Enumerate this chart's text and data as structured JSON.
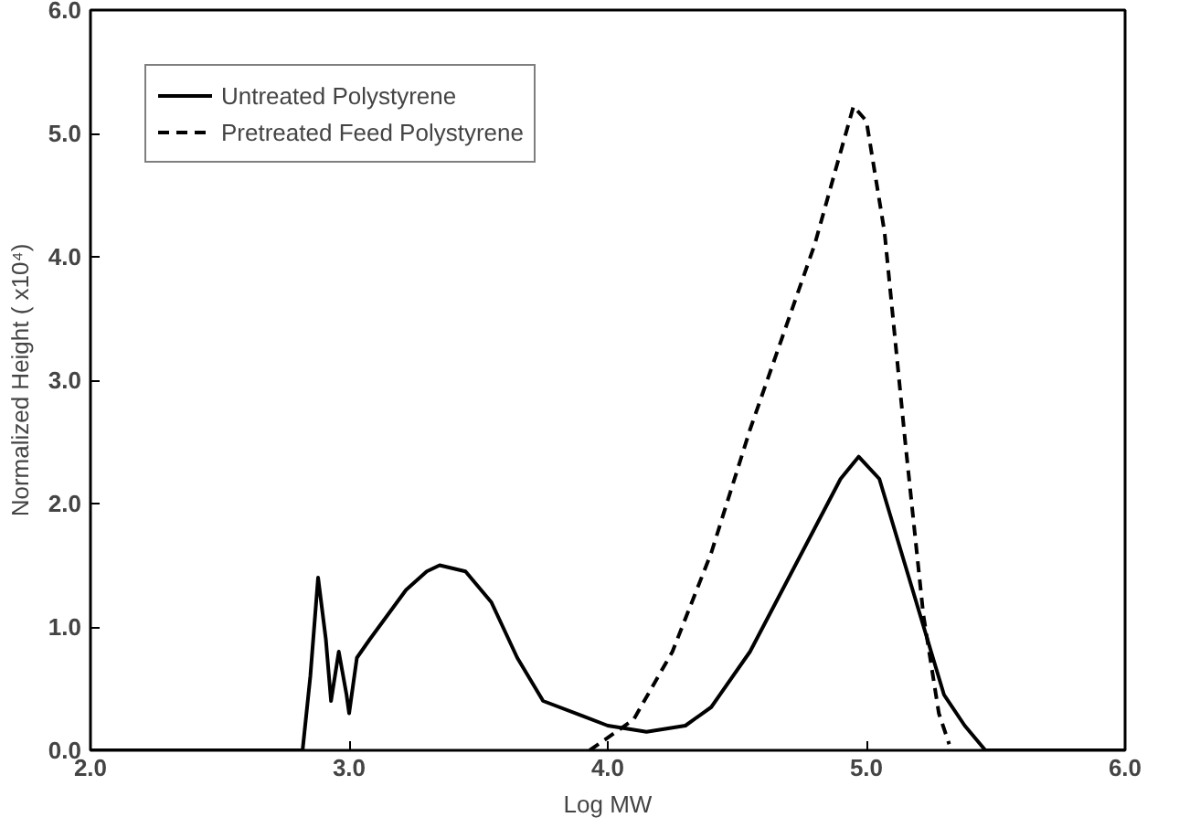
{
  "chart_data": {
    "type": "line",
    "xlabel": "Log MW",
    "ylabel": "Normalized Height ( x10⁴)",
    "xlim": [
      2,
      6
    ],
    "ylim": [
      0,
      6
    ],
    "xticks": [
      {
        "value": 2,
        "label": "2.0"
      },
      {
        "value": 3,
        "label": "3.0"
      },
      {
        "value": 4,
        "label": "4.0"
      },
      {
        "value": 5,
        "label": "5.0"
      },
      {
        "value": 6,
        "label": "6.0"
      }
    ],
    "yticks": [
      {
        "value": 0,
        "label": "0.0"
      },
      {
        "value": 1,
        "label": "1.0"
      },
      {
        "value": 2,
        "label": "2.0"
      },
      {
        "value": 3,
        "label": "3.0"
      },
      {
        "value": 4,
        "label": "4.0"
      },
      {
        "value": 5,
        "label": "5.0"
      },
      {
        "value": 6,
        "label": "6.0"
      }
    ],
    "legend": "top left",
    "grid": false,
    "series": [
      {
        "name": "Untreated Polystyrene",
        "color": "#000000",
        "line_style": "solid",
        "x": [
          2.0,
          2.82,
          2.85,
          2.88,
          2.91,
          2.93,
          2.96,
          2.99,
          3.0,
          3.03,
          3.08,
          3.15,
          3.22,
          3.3,
          3.35,
          3.45,
          3.55,
          3.65,
          3.75,
          3.9,
          4.0,
          4.15,
          4.3,
          4.4,
          4.55,
          4.7,
          4.8,
          4.9,
          4.97,
          5.05,
          5.15,
          5.25,
          5.3,
          5.38,
          5.46,
          6.0
        ],
        "values": [
          0,
          0,
          0.6,
          1.4,
          0.9,
          0.4,
          0.8,
          0.45,
          0.3,
          0.75,
          0.9,
          1.1,
          1.3,
          1.45,
          1.5,
          1.45,
          1.2,
          0.75,
          0.4,
          0.28,
          0.2,
          0.15,
          0.2,
          0.35,
          0.8,
          1.4,
          1.8,
          2.2,
          2.38,
          2.2,
          1.5,
          0.8,
          0.45,
          0.2,
          0,
          0
        ]
      },
      {
        "name": "Pretreated Feed Polystyrene",
        "color": "#000000",
        "line_style": "dashed",
        "x": [
          3.93,
          4.1,
          4.25,
          4.4,
          4.55,
          4.7,
          4.8,
          4.88,
          4.95,
          5.0,
          5.07,
          5.15,
          5.22,
          5.28,
          5.32
        ],
        "values": [
          0,
          0.25,
          0.8,
          1.6,
          2.6,
          3.5,
          4.1,
          4.7,
          5.22,
          5.1,
          4.2,
          2.5,
          1.1,
          0.3,
          0.05
        ]
      }
    ]
  }
}
